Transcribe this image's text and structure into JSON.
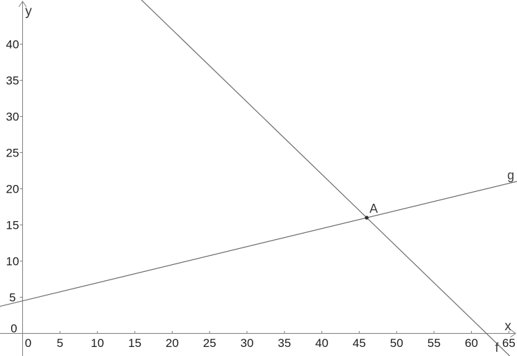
{
  "chart_data": {
    "type": "line",
    "title": "",
    "grid": false,
    "legend": "none",
    "background_color": "#ffffff",
    "axes": {
      "x": {
        "label": "x",
        "ticks": [
          0,
          5,
          10,
          15,
          20,
          25,
          30,
          35,
          40,
          45,
          50,
          55,
          60,
          65
        ],
        "tick_step": 5,
        "visible_range": [
          -3,
          66.3
        ]
      },
      "y": {
        "label": "y",
        "ticks": [
          0,
          5,
          10,
          15,
          20,
          25,
          30,
          35,
          40
        ],
        "tick_step": 5,
        "visible_range": [
          -3.2,
          46.1
        ]
      }
    },
    "series": [
      {
        "name": "f",
        "kind": "linear",
        "slope": -1,
        "intercept": 62,
        "x_intercept": 62
      },
      {
        "name": "g",
        "kind": "linear",
        "slope": 0.25,
        "intercept": 4.5
      }
    ],
    "points": [
      {
        "name": "A",
        "x": 46,
        "y": 16
      }
    ],
    "colors": {
      "axis": "#7d7d7d",
      "line": "#696969",
      "tick_label": "#1c1c1c",
      "curve_label": "#3d3d3d",
      "point": "#2e2e2e"
    }
  }
}
